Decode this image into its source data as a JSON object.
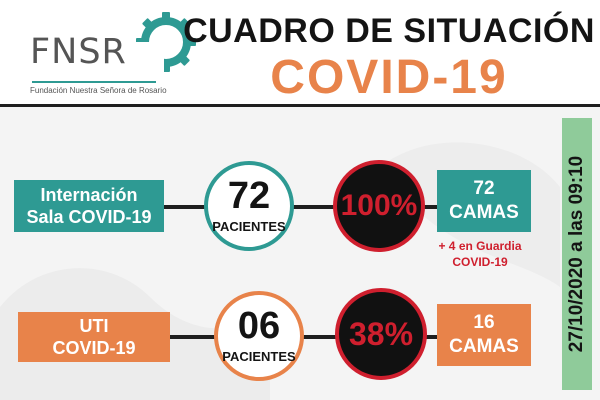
{
  "header": {
    "logo": {
      "brand": "FNSR",
      "subtitle": "Fundación Nuestra Señora de Rosario",
      "icon": "gear-icon",
      "color": "#2e9a93"
    },
    "title_line1": "CUADRO DE SITUACIÓN",
    "title_line2": "COVID-19"
  },
  "rows": [
    {
      "area_line1": "Internación",
      "area_line2": "Sala COVID-19",
      "patients_value": "72",
      "patients_unit": "PACIENTES",
      "occupancy": "100%",
      "beds_value": "72",
      "beds_unit": "CAMAS",
      "note_line1": "+ 4 en Guardia",
      "note_line2": "COVID-19",
      "accent": "#2e9a93"
    },
    {
      "area_line1": "UTI",
      "area_line2": "COVID-19",
      "patients_value": "06",
      "patients_unit": "PACIENTES",
      "occupancy": "38%",
      "beds_value": "16",
      "beds_unit": "CAMAS",
      "accent": "#e8834a"
    }
  ],
  "date_label": "27/10/2020 a las 09:10",
  "colors": {
    "teal": "#2e9a93",
    "orange": "#e8834a",
    "red": "#cf1f2e",
    "date_band": "#8fcb9a"
  }
}
